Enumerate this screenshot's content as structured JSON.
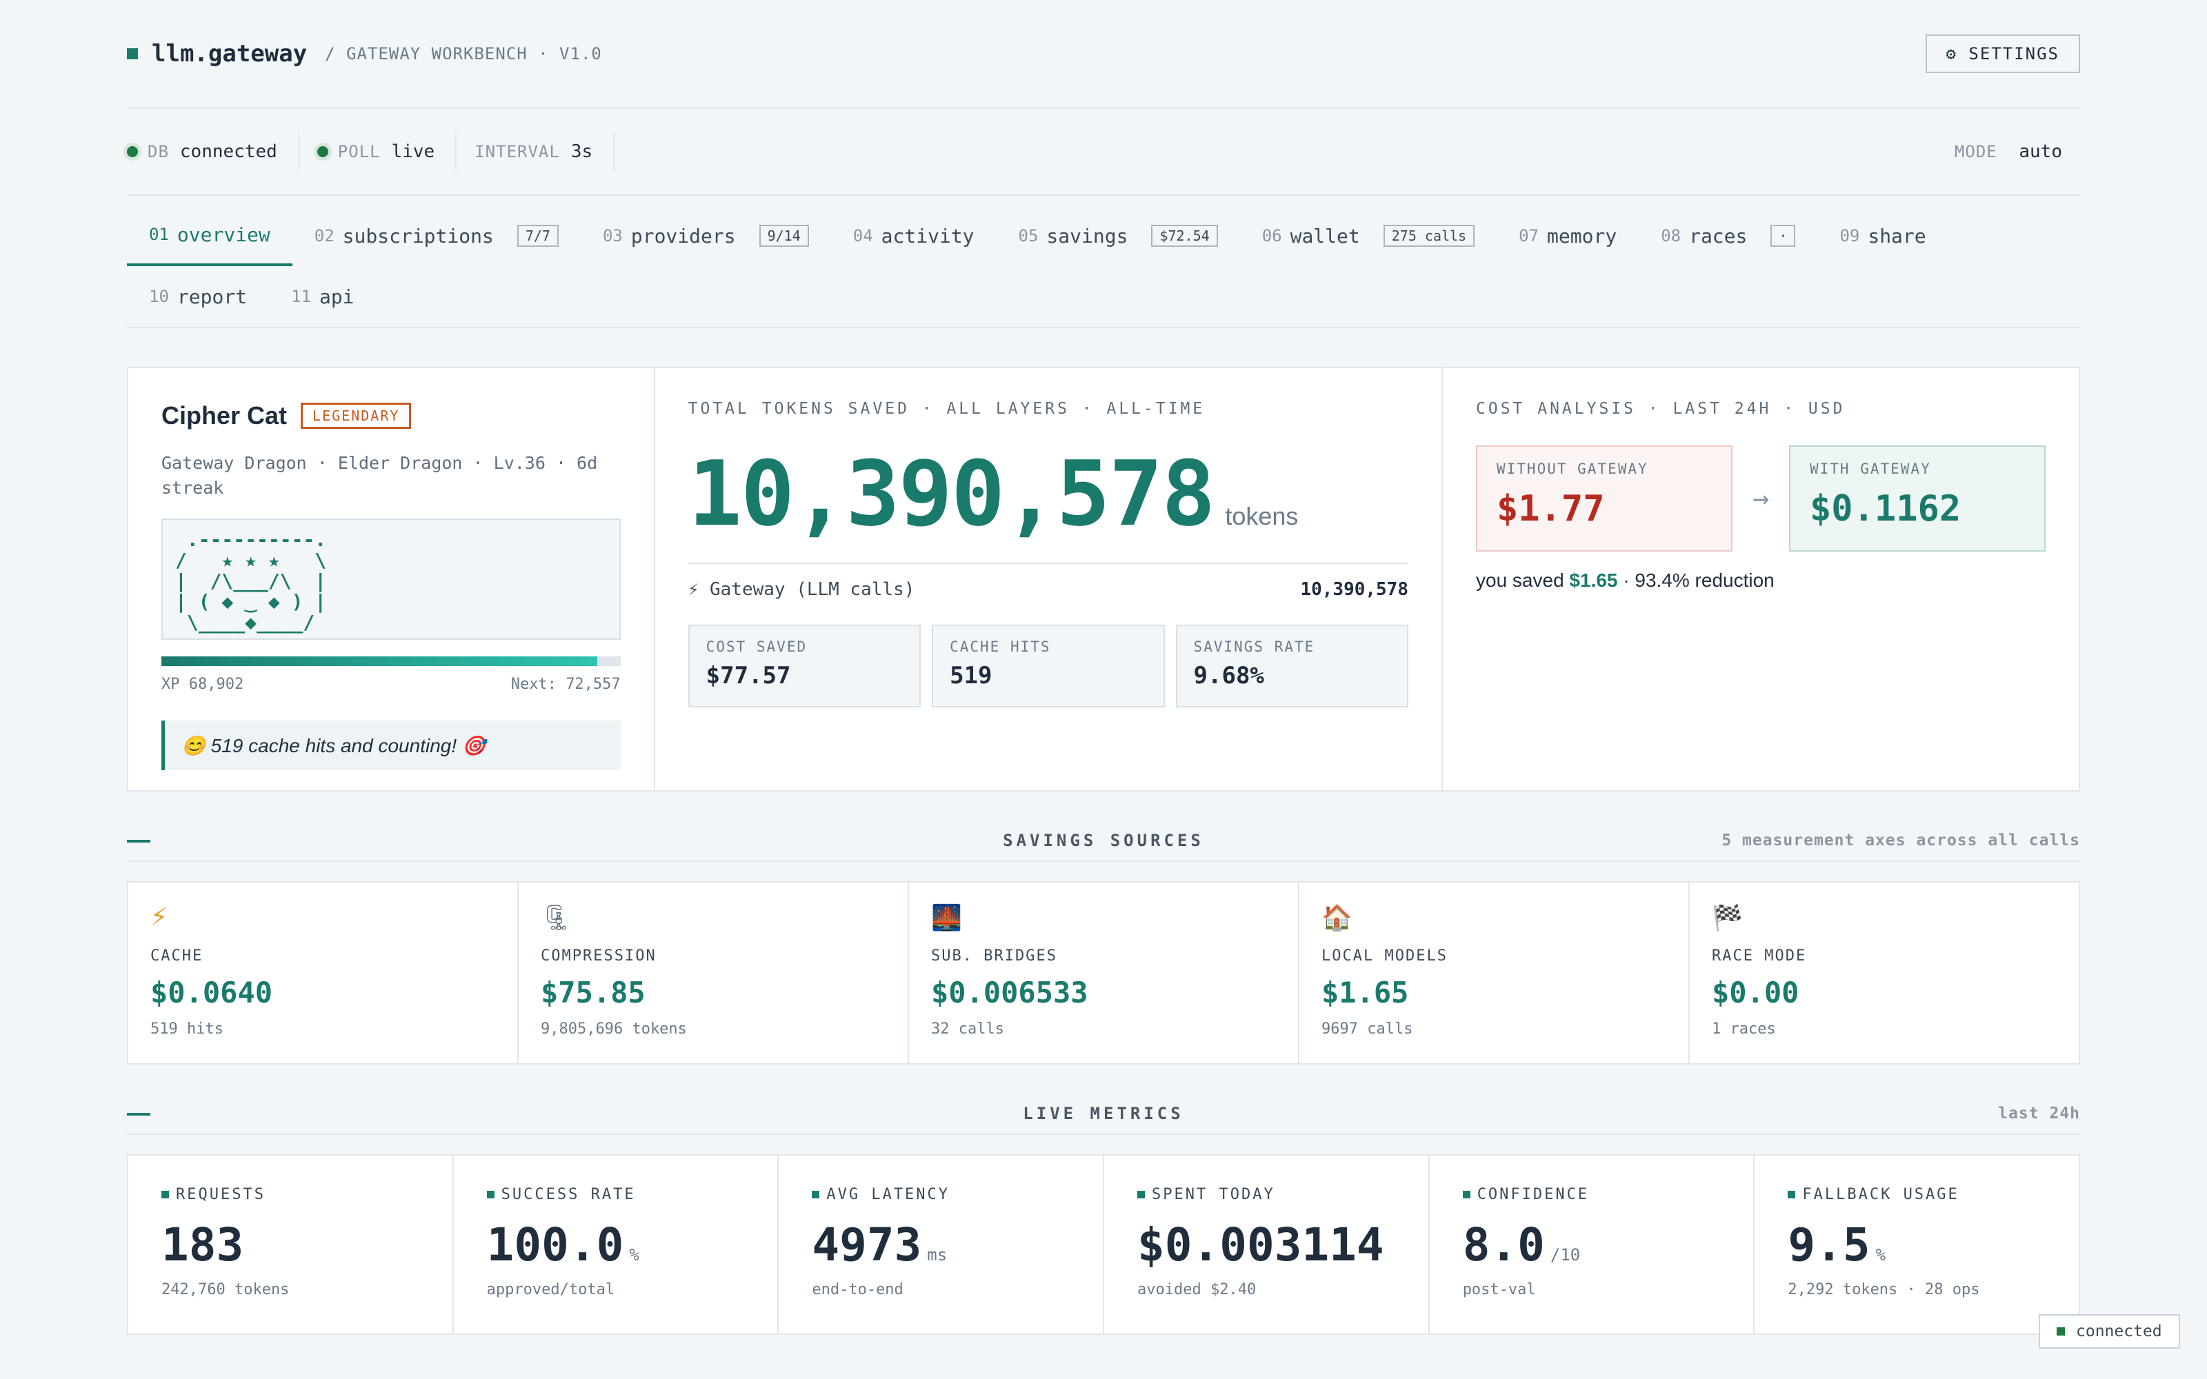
{
  "header": {
    "logo": "llm.gateway",
    "subtitle": "/ GATEWAY WORKBENCH · V1.0",
    "settings_icon": "gear-icon",
    "settings_label": "⚙ SETTINGS"
  },
  "status": {
    "db": {
      "key": "DB",
      "value": "connected"
    },
    "poll": {
      "key": "POLL",
      "value": "live"
    },
    "interval": {
      "key": "INTERVAL",
      "value": "3s"
    },
    "mode": {
      "key": "MODE",
      "value": "auto"
    }
  },
  "nav": {
    "tabs": [
      {
        "num": "01",
        "label": "overview",
        "badge": ""
      },
      {
        "num": "02",
        "label": "subscriptions",
        "badge": "7/7"
      },
      {
        "num": "03",
        "label": "providers",
        "badge": "9/14"
      },
      {
        "num": "04",
        "label": "activity",
        "badge": ""
      },
      {
        "num": "05",
        "label": "savings",
        "badge": "$72.54"
      },
      {
        "num": "06",
        "label": "wallet",
        "badge": "275 calls"
      },
      {
        "num": "07",
        "label": "memory",
        "badge": ""
      },
      {
        "num": "08",
        "label": "races",
        "badge": "·"
      },
      {
        "num": "09",
        "label": "share",
        "badge": ""
      },
      {
        "num": "10",
        "label": "report",
        "badge": ""
      },
      {
        "num": "11",
        "label": "api",
        "badge": ""
      }
    ]
  },
  "companion": {
    "name": "Cipher Cat",
    "rarity": "LEGENDARY",
    "subtitle": "Gateway Dragon · Elder Dragon · Lv.36 · 6d streak",
    "ascii": " .----------.\n/   ★ ★ ★   \\\n|  /\\___/\\  |\n| ( ◆ ‿ ◆ ) |\n \\____◆____/",
    "xp_label": "XP 68,902",
    "next_label": "Next: 72,557",
    "xp_progress": 0.95,
    "note": "😊 519 cache hits and counting! 🎯"
  },
  "tokens": {
    "label": "TOTAL TOKENS SAVED · ALL LAYERS · ALL-TIME",
    "value": "10,390,578",
    "unit": "tokens",
    "gateway_label": "⚡ Gateway (LLM calls)",
    "gateway_value": "10,390,578",
    "stats": [
      {
        "label": "COST SAVED",
        "value": "$77.57"
      },
      {
        "label": "CACHE HITS",
        "value": "519"
      },
      {
        "label": "SAVINGS RATE",
        "value": "9.68%"
      }
    ]
  },
  "cost": {
    "label": "COST ANALYSIS · LAST 24H · USD",
    "without_label": "WITHOUT GATEWAY",
    "without_value": "$1.77",
    "with_label": "WITH GATEWAY",
    "with_value": "$0.1162",
    "arrow": "→",
    "saved_prefix": "you saved",
    "saved_amount": "$1.65",
    "saved_suffix": "· 93.4% reduction"
  },
  "sources": {
    "title": "SAVINGS SOURCES",
    "side": "5 measurement axes across all calls",
    "items": [
      {
        "icon": "⚡",
        "icon_name": "lightning-icon",
        "label": "CACHE",
        "value": "$0.0640",
        "sub": "519 hits"
      },
      {
        "icon": "🗜",
        "icon_name": "clamp-icon",
        "label": "COMPRESSION",
        "value": "$75.85",
        "sub": "9,805,696 tokens"
      },
      {
        "icon": "🌉",
        "icon_name": "bridge-icon",
        "label": "SUB. BRIDGES",
        "value": "$0.006533",
        "sub": "32 calls"
      },
      {
        "icon": "🏠",
        "icon_name": "house-icon",
        "label": "LOCAL MODELS",
        "value": "$1.65",
        "sub": "9697 calls"
      },
      {
        "icon": "🏁",
        "icon_name": "checkered-flag-icon",
        "label": "RACE MODE",
        "value": "$0.00",
        "sub": "1 races"
      }
    ]
  },
  "metrics": {
    "title": "LIVE METRICS",
    "side": "last 24h",
    "items": [
      {
        "label": "REQUESTS",
        "value": "183",
        "unit": "",
        "sub": "242,760 tokens"
      },
      {
        "label": "SUCCESS RATE",
        "value": "100.0",
        "unit": "%",
        "sub": "approved/total"
      },
      {
        "label": "AVG LATENCY",
        "value": "4973",
        "unit": "ms",
        "sub": "end-to-end"
      },
      {
        "label": "SPENT TODAY",
        "value": "$0.003114",
        "unit": "",
        "sub": "avoided $2.40"
      },
      {
        "label": "CONFIDENCE",
        "value": "8.0",
        "unit": "/10",
        "sub": "post-val"
      },
      {
        "label": "FALLBACK USAGE",
        "value": "9.5",
        "unit": "%",
        "sub": "2,292 tokens · 28 ops"
      }
    ]
  },
  "connection": {
    "label": "connected"
  },
  "colors": {
    "accent": "#1a7a6c",
    "danger": "#b72a1f",
    "legendary": "#c75a1f",
    "ok": "#1d7a3e"
  }
}
